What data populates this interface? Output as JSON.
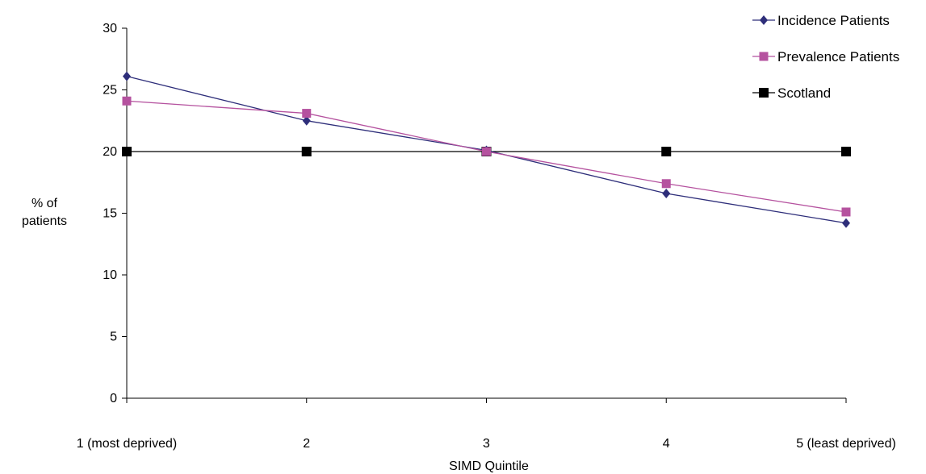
{
  "chart_data": {
    "type": "line",
    "title": "",
    "xlabel": "SIMD Quintile",
    "ylabel_lines": [
      "% of",
      "patients"
    ],
    "categories": [
      "1 (most deprived)",
      "2",
      "3",
      "4",
      "5 (least deprived)"
    ],
    "ylim": [
      0,
      30
    ],
    "yticks": [
      0,
      5,
      10,
      15,
      20,
      25,
      30
    ],
    "grid": false,
    "legend_position": "top-right",
    "series": [
      {
        "name": "Incidence Patients",
        "values": [
          26.1,
          22.5,
          20.1,
          16.6,
          14.2
        ],
        "color": "#2E2E7A",
        "marker": "diamond"
      },
      {
        "name": "Prevalence Patients",
        "values": [
          24.1,
          23.1,
          20.0,
          17.4,
          15.1
        ],
        "color": "#B5529F",
        "marker": "square"
      },
      {
        "name": "Scotland",
        "values": [
          20,
          20,
          20,
          20,
          20
        ],
        "color": "#000000",
        "marker": "square"
      }
    ]
  }
}
